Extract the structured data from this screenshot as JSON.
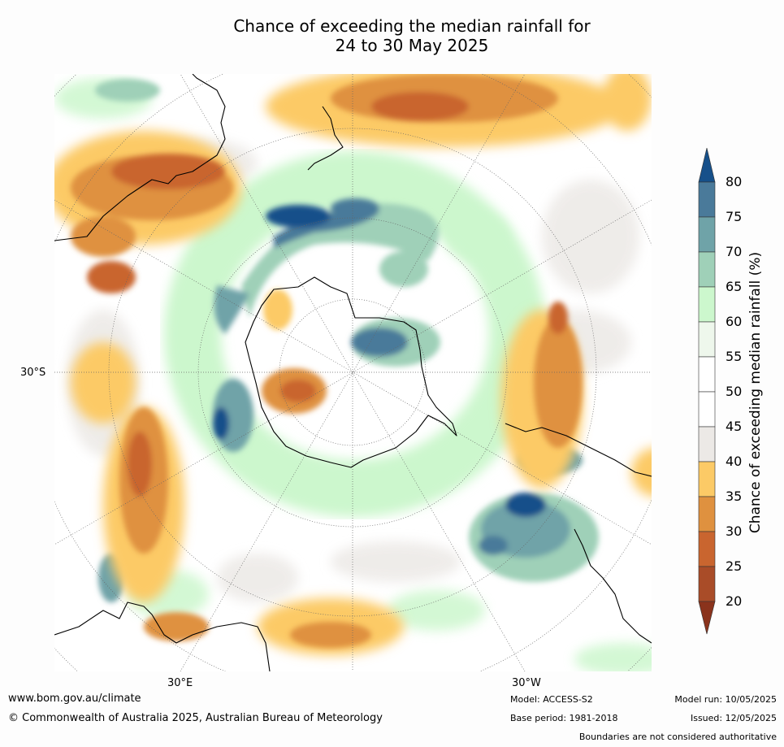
{
  "title": {
    "line1": "Chance of exceeding the median rainfall for",
    "line2": "24 to 30 May 2025"
  },
  "map": {
    "lat_label": "30°S",
    "lon_labels": [
      "30°E",
      "30°W"
    ]
  },
  "colorbar": {
    "label": "Chance of exceeding median rainfall (%)",
    "ticks": [
      "80",
      "75",
      "70",
      "65",
      "60",
      "55",
      "50",
      "45",
      "40",
      "35",
      "30",
      "25",
      "20"
    ],
    "colors": {
      "over80": "#16508a",
      "75_80": "#4a7a9a",
      "70_75": "#6fa3a8",
      "65_70": "#9fd0b8",
      "60_65": "#ccf7cd",
      "55_60": "#eef7ec",
      "50_55": "#ffffff",
      "45_50": "#ffffff",
      "40_45": "#ece9e6",
      "35_40": "#fcca66",
      "30_35": "#df913f",
      "25_30": "#c9652f",
      "20_25": "#a94c28",
      "under20": "#8a331c"
    }
  },
  "footer": {
    "website": "www.bom.gov.au/climate",
    "copyright": "© Commonwealth of Australia 2025, Australian Bureau of Meteorology",
    "model": "Model: ACCESS-S2",
    "base_period": "Base period: 1981-2018",
    "model_run": "Model run: 10/05/2025",
    "issued": "Issued: 12/05/2025",
    "disclaimer": "Boundaries are not considered authoritative"
  }
}
